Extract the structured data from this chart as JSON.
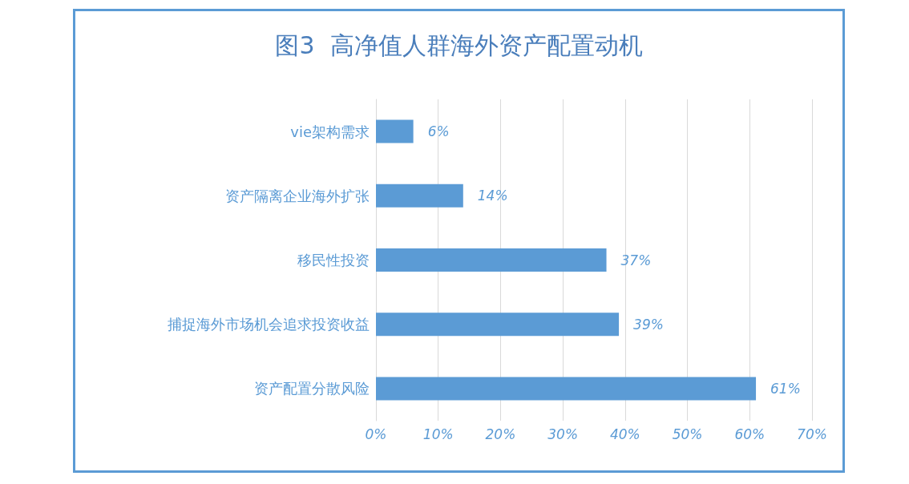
{
  "chart_data": {
    "type": "bar",
    "orientation": "horizontal",
    "title": "图3  高净值人群海外资产配置动机",
    "categories": [
      "vie架构需求",
      "资产隔离企业海外扩张",
      "移民性投资",
      "捕捉海外市场机会追求投资收益",
      "资产配置分散风险"
    ],
    "values": [
      6,
      14,
      37,
      39,
      61
    ],
    "value_labels": [
      "6%",
      "14%",
      "37%",
      "39%",
      "61%"
    ],
    "color": "#5b9bd5",
    "xlim": [
      0,
      70
    ],
    "xticks": [
      {
        "value": 0,
        "label": "0%"
      },
      {
        "value": 10,
        "label": "10%"
      },
      {
        "value": 20,
        "label": "20%"
      },
      {
        "value": 30,
        "label": "30%"
      },
      {
        "value": 40,
        "label": "40%"
      },
      {
        "value": 50,
        "label": "50%"
      },
      {
        "value": 60,
        "label": "60%"
      },
      {
        "value": 70,
        "label": "70%"
      }
    ],
    "grid": "x"
  }
}
